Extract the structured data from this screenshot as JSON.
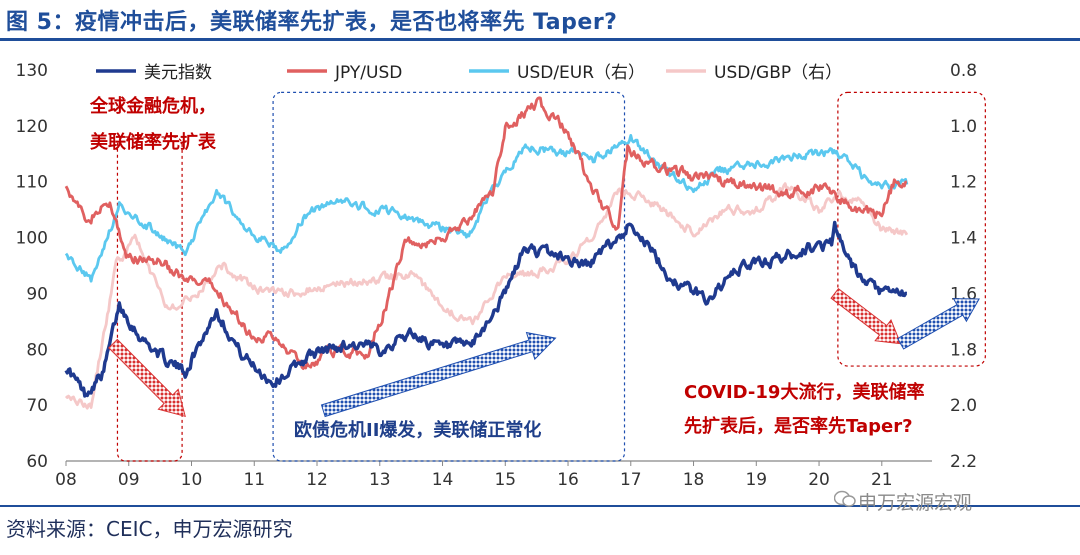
{
  "header": {
    "title": "图 5：疫情冲击后，美联储率先扩表，是否也将率先 Taper?"
  },
  "footer": {
    "source": "资料来源：CEIC，申万宏源研究",
    "watermark": "申万宏源宏观"
  },
  "chart_data": {
    "type": "line",
    "x_ticks": [
      "08",
      "09",
      "10",
      "11",
      "12",
      "13",
      "14",
      "15",
      "16",
      "17",
      "18",
      "19",
      "20",
      "21"
    ],
    "xlim": [
      2008.0,
      2021.8
    ],
    "y_left": {
      "ticks": [
        "130",
        "120",
        "110",
        "100",
        "90",
        "80",
        "70",
        "60"
      ],
      "lim": [
        60,
        130
      ]
    },
    "y_right": {
      "ticks": [
        "0.8",
        "1.0",
        "1.2",
        "1.4",
        "1.6",
        "1.8",
        "2.0",
        "2.2"
      ],
      "lim": [
        0.8,
        2.2
      ],
      "inverted": true
    },
    "legend": [
      "美元指数",
      "JPY/USD",
      "USD/EUR（右）",
      "USD/GBP（右）"
    ],
    "series": [
      {
        "name": "美元指数",
        "axis": "left",
        "color": "#1f3a8f",
        "x": [
          2008.0,
          2008.3,
          2008.6,
          2008.85,
          2009.2,
          2009.6,
          2009.9,
          2010.4,
          2010.8,
          2011.3,
          2011.9,
          2012.5,
          2013.0,
          2013.5,
          2014.0,
          2014.5,
          2015.0,
          2015.3,
          2015.8,
          2016.3,
          2016.9,
          2017.0,
          2017.6,
          2018.2,
          2018.8,
          2019.3,
          2019.8,
          2020.2,
          2020.25,
          2020.4,
          2020.7,
          2021.0,
          2021.4
        ],
        "y": [
          77,
          72,
          76,
          88,
          82,
          78,
          76,
          87,
          79,
          74,
          79,
          81,
          80,
          83,
          80,
          81,
          90,
          98,
          97,
          95,
          101,
          103,
          93,
          89,
          95,
          96,
          98,
          99,
          103,
          97,
          92,
          90,
          90
        ]
      },
      {
        "name": "JPY/USD",
        "axis": "left",
        "color": "#e06060",
        "x": [
          2008.0,
          2008.3,
          2008.7,
          2009.0,
          2009.5,
          2009.9,
          2010.4,
          2010.9,
          2011.3,
          2011.8,
          2012.3,
          2012.8,
          2013.1,
          2013.4,
          2013.8,
          2014.3,
          2014.8,
          2015.0,
          2015.5,
          2016.0,
          2016.4,
          2016.8,
          2016.95,
          2017.5,
          2018.0,
          2018.5,
          2019.0,
          2019.5,
          2020.0,
          2020.3,
          2020.6,
          2021.0,
          2021.2,
          2021.4
        ],
        "y": [
          110,
          103,
          106,
          96,
          96,
          92,
          91,
          83,
          82,
          77,
          80,
          79,
          88,
          99,
          99,
          102,
          108,
          120,
          124,
          119,
          108,
          102,
          116,
          112,
          111,
          110,
          109,
          108,
          109,
          107,
          105,
          104,
          110,
          110
        ]
      },
      {
        "name": "USD/EUR（右）",
        "axis": "right",
        "color": "#5bc8ef",
        "x": [
          2008.0,
          2008.4,
          2008.85,
          2009.3,
          2009.9,
          2010.4,
          2010.9,
          2011.4,
          2011.9,
          2012.4,
          2012.9,
          2013.4,
          2014.0,
          2014.4,
          2015.0,
          2015.3,
          2015.9,
          2016.4,
          2016.9,
          2017.0,
          2017.5,
          2018.0,
          2018.4,
          2018.8,
          2019.4,
          2019.9,
          2020.3,
          2020.7,
          2021.0,
          2021.4
        ],
        "y": [
          1.47,
          1.55,
          1.28,
          1.36,
          1.45,
          1.24,
          1.37,
          1.45,
          1.3,
          1.26,
          1.3,
          1.32,
          1.37,
          1.39,
          1.16,
          1.08,
          1.09,
          1.12,
          1.05,
          1.04,
          1.15,
          1.23,
          1.16,
          1.14,
          1.12,
          1.1,
          1.1,
          1.18,
          1.21,
          1.21
        ]
      },
      {
        "name": "USD/GBP（右）",
        "axis": "right",
        "color": "#f5c8c8",
        "x": [
          2008.0,
          2008.4,
          2008.8,
          2009.1,
          2009.6,
          2010.0,
          2010.5,
          2011.0,
          2011.5,
          2012.0,
          2012.5,
          2013.0,
          2013.5,
          2014.0,
          2014.5,
          2015.0,
          2015.5,
          2016.0,
          2016.4,
          2016.8,
          2017.2,
          2018.0,
          2018.5,
          2019.0,
          2019.5,
          2020.0,
          2020.3,
          2020.7,
          2021.0,
          2021.4
        ],
        "y": [
          1.98,
          2.0,
          1.5,
          1.4,
          1.65,
          1.62,
          1.5,
          1.58,
          1.6,
          1.58,
          1.56,
          1.55,
          1.53,
          1.65,
          1.7,
          1.53,
          1.53,
          1.48,
          1.4,
          1.23,
          1.25,
          1.38,
          1.3,
          1.3,
          1.22,
          1.3,
          1.24,
          1.28,
          1.37,
          1.39
        ]
      }
    ],
    "annotations": {
      "crisis": [
        "全球金融危机，",
        "美联储率先扩表"
      ],
      "euro_crisis": "欧债危机II爆发，美联储正常化",
      "covid": [
        "COVID-19大流行，美联储率",
        "先扩表后，是否率先Taper?"
      ]
    }
  }
}
